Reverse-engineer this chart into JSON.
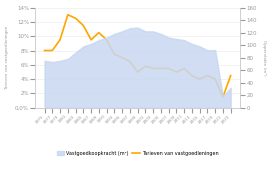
{
  "years": [
    1975,
    1977,
    1979,
    1981,
    1983,
    1985,
    1987,
    1989,
    1991,
    1993,
    1995,
    1997,
    1999,
    2001,
    2003,
    2005,
    2007,
    2009,
    2011,
    2013,
    2015,
    2017,
    2019,
    2021,
    2023
  ],
  "interest": [
    0.08,
    0.08,
    0.095,
    0.13,
    0.125,
    0.115,
    0.095,
    0.105,
    0.095,
    0.075,
    0.07,
    0.065,
    0.05,
    0.058,
    0.055,
    0.055,
    0.055,
    0.05,
    0.055,
    0.045,
    0.04,
    0.045,
    0.04,
    0.015,
    0.045
  ],
  "area": [
    75,
    73,
    75,
    78,
    88,
    98,
    102,
    108,
    112,
    118,
    122,
    127,
    128,
    122,
    122,
    118,
    112,
    110,
    108,
    102,
    98,
    92,
    92,
    18,
    32
  ],
  "interest_color": "#FFA500",
  "area_color": "#c8d8f0",
  "left_ylabel": "Tarieven van vastgoedleningen",
  "right_ylabel": "Oppervlakte (m²)",
  "legend_area": "Vastgoedkoopkracht (m²)",
  "legend_line": "Tarieven van vastgoedleningen",
  "ylim_left": [
    0,
    0.14
  ],
  "ylim_right": [
    0,
    160
  ],
  "yticks_left": [
    0,
    0.02,
    0.04,
    0.06,
    0.08,
    0.1,
    0.12,
    0.14
  ],
  "yticks_right": [
    0,
    20,
    40,
    60,
    80,
    100,
    120,
    140,
    160
  ],
  "background_color": "#ffffff"
}
